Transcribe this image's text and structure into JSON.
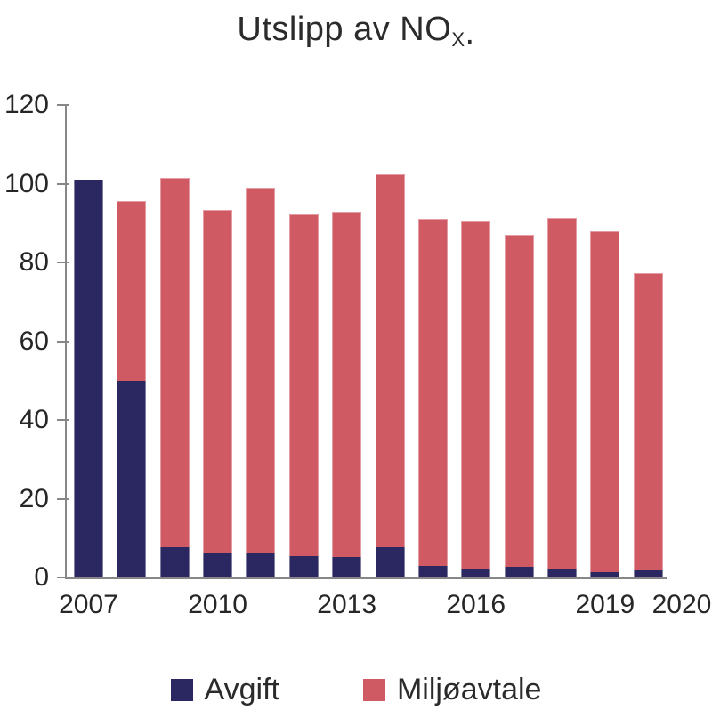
{
  "figure": {
    "background": "#ffffff",
    "axis_color": "#878787",
    "text_color": "#262626"
  },
  "chart_data": {
    "type": "bar",
    "stacked": true,
    "title_prefix": "Utslipp av NO",
    "title_sub": "X",
    "title_suffix": ".",
    "categories": [
      "2007",
      "2008",
      "2009",
      "2010",
      "2011",
      "2012",
      "2013",
      "2014",
      "2015",
      "2016",
      "2017",
      "2018",
      "2019",
      "2020"
    ],
    "series": [
      {
        "name": "Avgift",
        "color": "#2a2761",
        "values": [
          101.0,
          50.0,
          7.6,
          6.0,
          6.4,
          5.5,
          5.2,
          7.6,
          2.9,
          2.0,
          2.6,
          2.2,
          1.4,
          1.8
        ]
      },
      {
        "name": "Miljøavtale",
        "color": "#cf5a64",
        "values": [
          0.0,
          45.7,
          93.8,
          87.3,
          92.6,
          86.7,
          87.6,
          94.8,
          88.1,
          88.7,
          84.3,
          89.0,
          86.5,
          75.4
        ]
      }
    ],
    "totals": [
      101.0,
      95.7,
      101.4,
      93.3,
      99.0,
      92.2,
      92.8,
      102.4,
      91.0,
      90.7,
      86.9,
      91.2,
      87.9,
      77.2
    ],
    "ylim": [
      0,
      120
    ],
    "yticks": [
      0,
      20,
      40,
      60,
      80,
      100,
      120
    ],
    "xticks": [
      {
        "label": "2007",
        "bar": 0
      },
      {
        "label": "2010",
        "bar": 3
      },
      {
        "label": "2013",
        "bar": 6
      },
      {
        "label": "2016",
        "bar": 9
      },
      {
        "label": "2019",
        "bar": 12
      },
      {
        "label": "2020",
        "bar": null
      }
    ],
    "grid": false,
    "legend_position": "bottom"
  }
}
